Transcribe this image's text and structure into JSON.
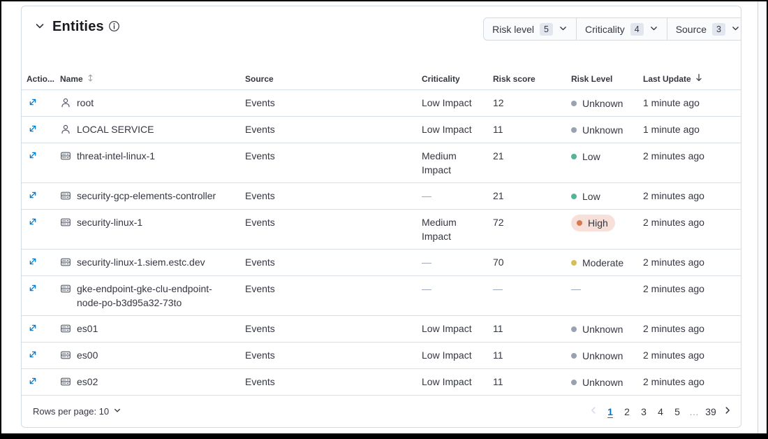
{
  "panel": {
    "title": "Entities",
    "filters": [
      {
        "label": "Risk level",
        "count": "5"
      },
      {
        "label": "Criticality",
        "count": "4"
      },
      {
        "label": "Source",
        "count": "3"
      }
    ]
  },
  "table": {
    "columns": {
      "actions": "Actio...",
      "name": "Name",
      "source": "Source",
      "criticality": "Criticality",
      "risk_score": "Risk score",
      "risk_level": "Risk Level",
      "last_update": "Last Update"
    },
    "empty_placeholder": "—",
    "rows": [
      {
        "entity_type": "user",
        "name": "root",
        "source": "Events",
        "criticality": "Low Impact",
        "risk_score": "12",
        "risk_level": "Unknown",
        "last_update": "1 minute ago"
      },
      {
        "entity_type": "user",
        "name": "LOCAL SERVICE",
        "source": "Events",
        "criticality": "Low Impact",
        "risk_score": "11",
        "risk_level": "Unknown",
        "last_update": "1 minute ago"
      },
      {
        "entity_type": "host",
        "name": "threat-intel-linux-1",
        "source": "Events",
        "criticality": "Medium Impact",
        "risk_score": "21",
        "risk_level": "Low",
        "last_update": "2 minutes ago"
      },
      {
        "entity_type": "host",
        "name": "security-gcp-elements-controller",
        "source": "Events",
        "criticality": "—",
        "risk_score": "21",
        "risk_level": "Low",
        "last_update": "2 minutes ago"
      },
      {
        "entity_type": "host",
        "name": "security-linux-1",
        "source": "Events",
        "criticality": "Medium Impact",
        "risk_score": "72",
        "risk_level": "High",
        "last_update": "2 minutes ago"
      },
      {
        "entity_type": "host",
        "name": "security-linux-1.siem.estc.dev",
        "source": "Events",
        "criticality": "—",
        "risk_score": "70",
        "risk_level": "Moderate",
        "last_update": "2 minutes ago"
      },
      {
        "entity_type": "host",
        "name": "gke-endpoint-gke-clu-endpoint-node-po-b3d95a32-73to",
        "source": "Events",
        "criticality": "—",
        "risk_score": "—",
        "risk_level": "—",
        "last_update": "2 minutes ago"
      },
      {
        "entity_type": "host",
        "name": "es01",
        "source": "Events",
        "criticality": "Low Impact",
        "risk_score": "11",
        "risk_level": "Unknown",
        "last_update": "2 minutes ago"
      },
      {
        "entity_type": "host",
        "name": "es00",
        "source": "Events",
        "criticality": "Low Impact",
        "risk_score": "11",
        "risk_level": "Unknown",
        "last_update": "2 minutes ago"
      },
      {
        "entity_type": "host",
        "name": "es02",
        "source": "Events",
        "criticality": "Low Impact",
        "risk_score": "11",
        "risk_level": "Unknown",
        "last_update": "2 minutes ago"
      }
    ]
  },
  "risk_level_styles": {
    "Unknown": {
      "dot": "#98A2B3",
      "pill": false
    },
    "Low": {
      "dot": "#54B399",
      "pill": false
    },
    "Moderate": {
      "dot": "#D6BF57",
      "pill": false
    },
    "High": {
      "dot": "#D6794E",
      "pill": true
    }
  },
  "footer": {
    "rows_per_page_label": "Rows per page: 10",
    "pages": [
      "1",
      "2",
      "3",
      "4",
      "5",
      "…",
      "39"
    ],
    "active_page": "1"
  },
  "colors": {
    "accent_blue": "#0077CC",
    "border": "#D3DAE6",
    "text": "#343741",
    "high_pill_bg": "#F7E0DA"
  }
}
